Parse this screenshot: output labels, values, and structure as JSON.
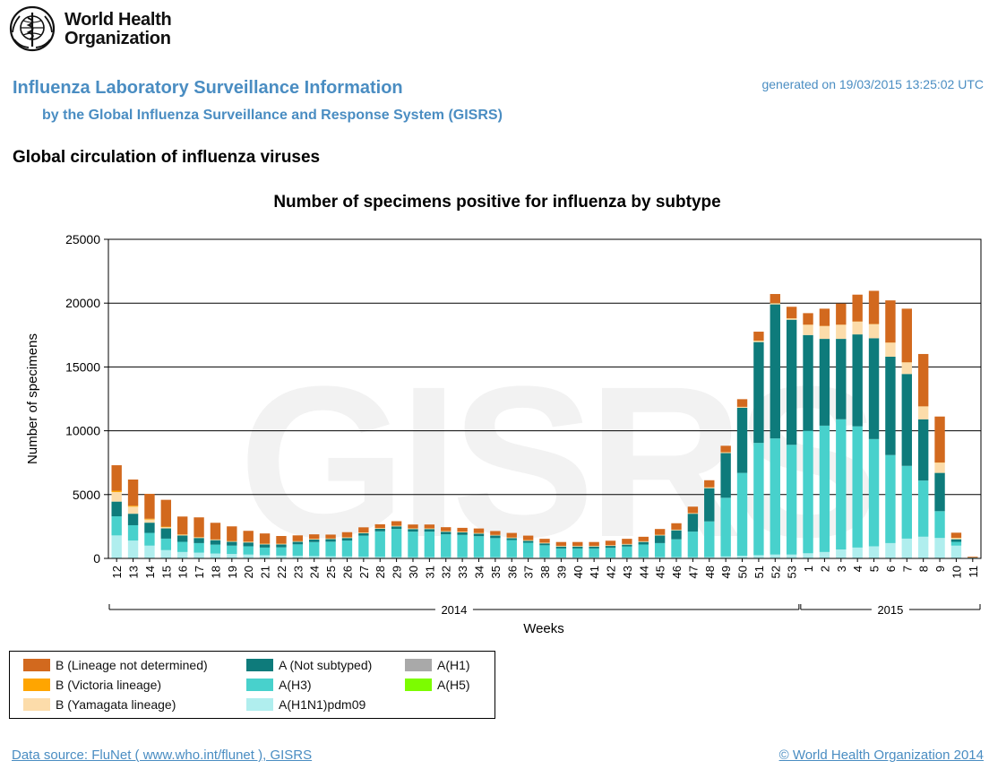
{
  "header": {
    "org_name_line1": "World Health",
    "org_name_line2": "Organization",
    "report_title": "Influenza Laboratory Surveillance Information",
    "report_subtitle": "by the Global Influenza Surveillance and Response System (GISRS)",
    "generated": "generated on 19/03/2015 13:25:02 UTC",
    "section_title": "Global circulation of influenza viruses"
  },
  "watermark": "GISRS",
  "legend": {
    "items": [
      {
        "label": "B (Lineage not determined)",
        "color": "#d2691e"
      },
      {
        "label": "B (Victoria lineage)",
        "color": "#ffa500"
      },
      {
        "label": "B (Yamagata lineage)",
        "color": "#fcdcaa"
      },
      {
        "label": "A (Not subtyped)",
        "color": "#0e7b7b"
      },
      {
        "label": "A(H3)",
        "color": "#48d1cc"
      },
      {
        "label": "A(H1N1)pdm09",
        "color": "#b0eeee"
      },
      {
        "label": "A(H1)",
        "color": "#a9a9a9"
      },
      {
        "label": "A(H5)",
        "color": "#7cfc00"
      }
    ]
  },
  "footer": {
    "source": "Data source: FluNet ( www.who.int/flunet ), GISRS",
    "copyright": "© World Health Organization 2014"
  },
  "chart_data": {
    "type": "bar",
    "stacked": true,
    "title": "Number of specimens positive for influenza by subtype",
    "xlabel": "Weeks",
    "ylabel": "Number of specimens",
    "ylim": [
      0,
      25000
    ],
    "yticks": [
      0,
      5000,
      10000,
      15000,
      20000,
      25000
    ],
    "grid": true,
    "categories": [
      "12",
      "13",
      "14",
      "15",
      "16",
      "17",
      "18",
      "19",
      "20",
      "21",
      "22",
      "23",
      "24",
      "25",
      "26",
      "27",
      "28",
      "29",
      "30",
      "31",
      "32",
      "33",
      "34",
      "35",
      "36",
      "37",
      "38",
      "39",
      "40",
      "41",
      "42",
      "43",
      "44",
      "45",
      "46",
      "47",
      "48",
      "49",
      "50",
      "51",
      "52",
      "53",
      "1",
      "2",
      "3",
      "4",
      "5",
      "6",
      "7",
      "8",
      "9",
      "10",
      "11"
    ],
    "year_groups": [
      {
        "label": "2014",
        "from": "12",
        "to": "53"
      },
      {
        "label": "2015",
        "from": "1",
        "to": "11"
      }
    ],
    "series": [
      {
        "name": "A(H1N1)pdm09",
        "color": "#b0eeee",
        "values": [
          1800,
          1400,
          1000,
          650,
          500,
          450,
          380,
          350,
          300,
          250,
          220,
          200,
          180,
          160,
          150,
          130,
          120,
          110,
          100,
          100,
          90,
          90,
          90,
          90,
          90,
          80,
          80,
          80,
          80,
          80,
          80,
          80,
          90,
          100,
          100,
          100,
          100,
          150,
          200,
          250,
          300,
          300,
          400,
          500,
          700,
          850,
          950,
          1200,
          1550,
          1700,
          1600,
          1000,
          30
        ]
      },
      {
        "name": "A(H3)",
        "color": "#48d1cc",
        "values": [
          1500,
          1200,
          1000,
          900,
          800,
          750,
          700,
          650,
          650,
          600,
          650,
          900,
          1100,
          1150,
          1250,
          1650,
          2000,
          2200,
          2000,
          2000,
          1800,
          1750,
          1650,
          1500,
          1350,
          1150,
          950,
          700,
          700,
          700,
          750,
          850,
          1000,
          1100,
          1400,
          2000,
          2800,
          4600,
          6500,
          8800,
          9100,
          8600,
          9600,
          9900,
          10200,
          9500,
          8400,
          6900,
          5700,
          4400,
          2100,
          300,
          10
        ]
      },
      {
        "name": "A(H1)",
        "color": "#a9a9a9",
        "values": [
          0,
          0,
          0,
          0,
          0,
          0,
          0,
          0,
          0,
          0,
          0,
          0,
          0,
          0,
          0,
          0,
          0,
          0,
          0,
          0,
          0,
          0,
          0,
          0,
          0,
          0,
          0,
          0,
          0,
          0,
          0,
          0,
          0,
          0,
          0,
          0,
          0,
          0,
          0,
          0,
          0,
          0,
          0,
          0,
          0,
          0,
          0,
          0,
          0,
          0,
          0,
          0,
          0
        ]
      },
      {
        "name": "A(H5)",
        "color": "#7cfc00",
        "values": [
          0,
          0,
          0,
          0,
          0,
          0,
          0,
          0,
          0,
          0,
          0,
          0,
          0,
          0,
          0,
          0,
          0,
          0,
          0,
          0,
          0,
          0,
          0,
          0,
          0,
          0,
          0,
          0,
          0,
          0,
          0,
          0,
          0,
          0,
          0,
          0,
          0,
          0,
          0,
          0,
          0,
          0,
          0,
          0,
          0,
          0,
          0,
          0,
          0,
          0,
          0,
          0,
          0
        ]
      },
      {
        "name": "A (Not subtyped)",
        "color": "#0e7b7b",
        "values": [
          1150,
          900,
          800,
          800,
          500,
          400,
          350,
          300,
          300,
          250,
          230,
          200,
          200,
          200,
          200,
          200,
          200,
          200,
          200,
          200,
          200,
          200,
          200,
          200,
          150,
          150,
          150,
          150,
          150,
          150,
          150,
          150,
          200,
          600,
          700,
          1400,
          2600,
          3500,
          5100,
          7900,
          10500,
          9800,
          7500,
          6800,
          6300,
          7200,
          7900,
          7700,
          7200,
          4800,
          3000,
          200,
          20
        ]
      },
      {
        "name": "B (Yamagata lineage)",
        "color": "#fcdcaa",
        "values": [
          750,
          550,
          250,
          100,
          50,
          40,
          40,
          40,
          40,
          40,
          40,
          40,
          40,
          40,
          40,
          40,
          40,
          40,
          40,
          40,
          40,
          40,
          40,
          40,
          40,
          40,
          40,
          40,
          40,
          40,
          40,
          40,
          40,
          40,
          40,
          40,
          60,
          60,
          60,
          100,
          100,
          100,
          800,
          1000,
          1100,
          1000,
          1100,
          1100,
          900,
          1000,
          800,
          100,
          10
        ]
      },
      {
        "name": "B (Victoria lineage)",
        "color": "#ffa500",
        "values": [
          100,
          80,
          60,
          40,
          30,
          25,
          20,
          20,
          20,
          15,
          15,
          15,
          15,
          15,
          15,
          15,
          15,
          15,
          15,
          15,
          15,
          15,
          15,
          15,
          15,
          15,
          15,
          15,
          15,
          15,
          15,
          15,
          15,
          15,
          15,
          15,
          15,
          15,
          15,
          15,
          15,
          15,
          15,
          15,
          15,
          15,
          15,
          15,
          15,
          15,
          15,
          15,
          5
        ]
      },
      {
        "name": "B (Lineage not determined)",
        "color": "#d2691e",
        "values": [
          2000,
          2050,
          1950,
          2100,
          1400,
          1550,
          1300,
          1150,
          850,
          800,
          600,
          450,
          350,
          300,
          400,
          400,
          300,
          350,
          300,
          300,
          300,
          300,
          350,
          300,
          350,
          350,
          300,
          300,
          300,
          300,
          350,
          400,
          350,
          450,
          500,
          500,
          550,
          500,
          600,
          700,
          700,
          900,
          900,
          1350,
          1650,
          2100,
          2600,
          3300,
          4200,
          4100,
          3600,
          400,
          60
        ]
      }
    ]
  }
}
